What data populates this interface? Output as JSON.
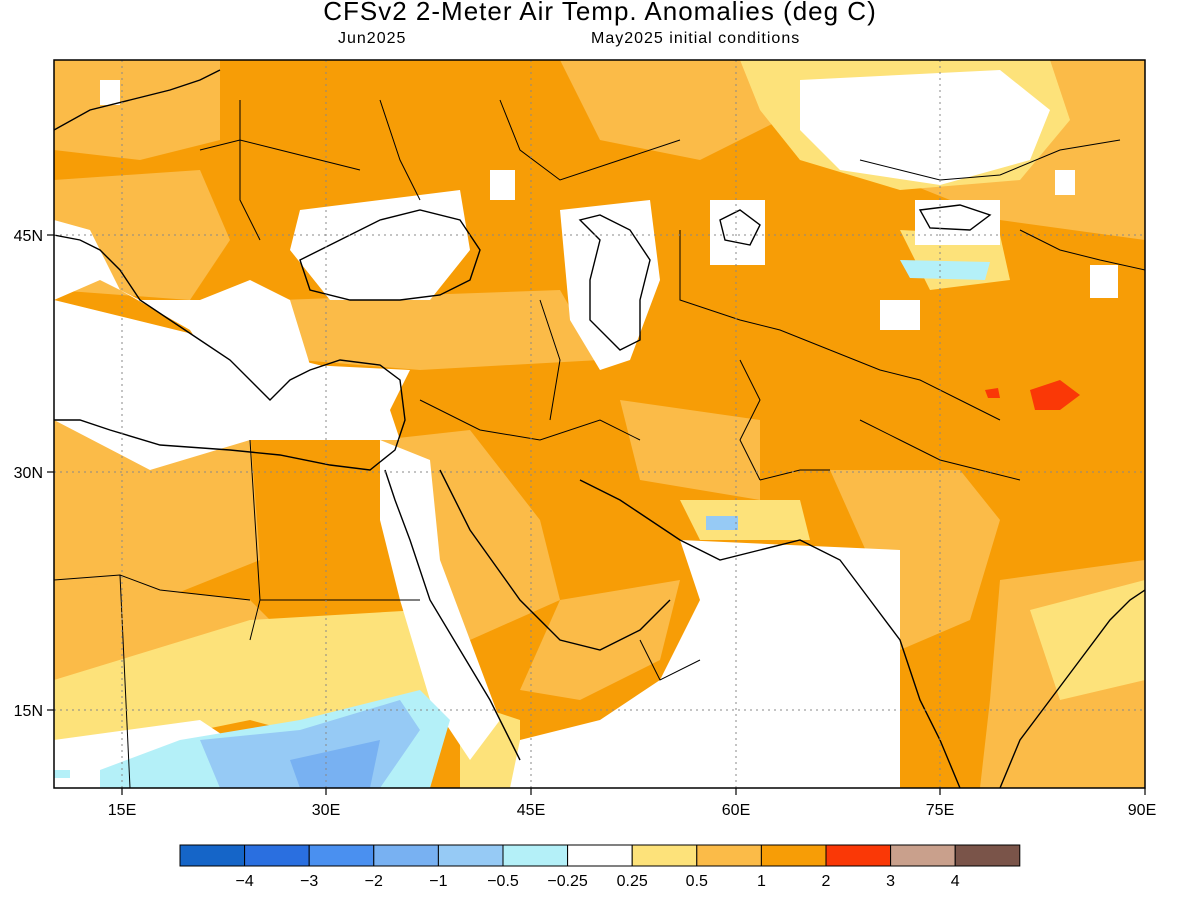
{
  "title": "CFSv2 2-Meter Air Temp. Anomalies (deg C)",
  "subtitle_left": "Jun2025",
  "subtitle_right": "May2025 initial conditions",
  "x_ticks": [
    "15E",
    "30E",
    "45E",
    "60E",
    "75E",
    "90E"
  ],
  "y_ticks": [
    "45N",
    "30N",
    "15N"
  ],
  "colorbar": {
    "colors": [
      "#1565c8",
      "#2a6fe0",
      "#4a90f0",
      "#78b1f2",
      "#96caf5",
      "#b4f0f8",
      "#ffffff",
      "#fde27a",
      "#fbbb48",
      "#f79d06",
      "#fa3806",
      "#c9a08c",
      "#7a5449"
    ],
    "labels": [
      "-4",
      "-3",
      "-2",
      "-1",
      "-0.5",
      "-0.25",
      "0.25",
      "0.5",
      "1",
      "2",
      "3",
      "4"
    ]
  },
  "map_colors": {
    "white": "#ffffff",
    "light_yellow": "#fde27a",
    "light_orange": "#fbbb48",
    "orange": "#f79d06",
    "red": "#fa3806",
    "light_blue": "#b4f0f8",
    "mid_blue": "#96caf5",
    "blue": "#78b1f2"
  }
}
